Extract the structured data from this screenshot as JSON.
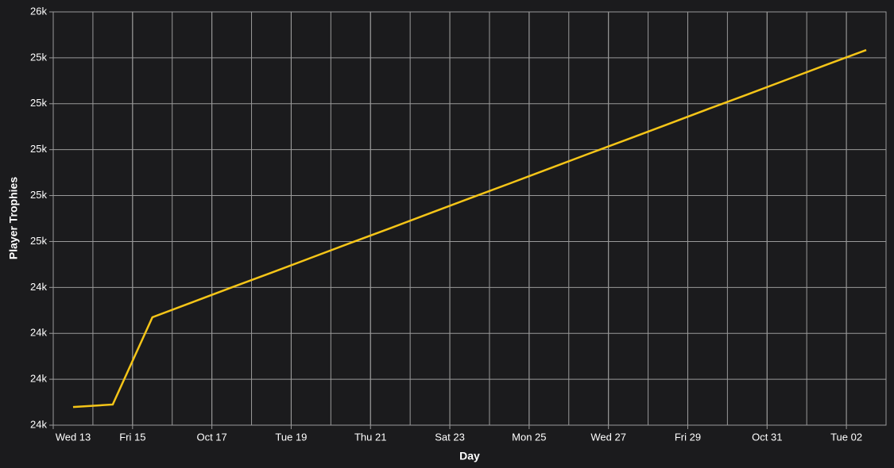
{
  "chart_data": {
    "type": "line",
    "x_label": "Day",
    "y_label": "Player Trophies",
    "x": [
      "Oct 13",
      "Oct 14",
      "Oct 15",
      "Oct 16",
      "Oct 17",
      "Oct 18",
      "Oct 19",
      "Oct 20",
      "Oct 21",
      "Oct 22",
      "Oct 23",
      "Oct 24",
      "Oct 25",
      "Oct 26",
      "Oct 27",
      "Oct 28",
      "Oct 29",
      "Oct 30",
      "Oct 31",
      "Nov 01",
      "Nov 02"
    ],
    "series": [
      {
        "name": "Player Trophies",
        "color": "#f5c518",
        "values": [
          23879,
          23890,
          24270,
          24335,
          24400,
          24464,
          24529,
          24594,
          24658,
          24723,
          24788,
          24852,
          24917,
          24982,
          25046,
          25111,
          25176,
          25240,
          25305,
          25370,
          25434
        ]
      }
    ],
    "xlim": [
      "Oct 13",
      "Nov 03"
    ],
    "xticks": [
      {
        "value": "Oct 13",
        "label": "Wed 13"
      },
      {
        "value": "Oct 15",
        "label": "Fri 15"
      },
      {
        "value": "Oct 17",
        "label": "Oct 17"
      },
      {
        "value": "Oct 19",
        "label": "Tue 19"
      },
      {
        "value": "Oct 21",
        "label": "Thu 21"
      },
      {
        "value": "Oct 23",
        "label": "Sat 23"
      },
      {
        "value": "Oct 25",
        "label": "Mon 25"
      },
      {
        "value": "Oct 27",
        "label": "Wed 27"
      },
      {
        "value": "Oct 29",
        "label": "Fri 29"
      },
      {
        "value": "Oct 31",
        "label": "Oct 31"
      },
      {
        "value": "Nov 02",
        "label": "Tue 02"
      }
    ],
    "ylim": [
      23800,
      25600
    ],
    "yticks": [
      {
        "value": 23800,
        "label": "24k"
      },
      {
        "value": 24000,
        "label": "24k"
      },
      {
        "value": 24200,
        "label": "24k"
      },
      {
        "value": 24400,
        "label": "24k"
      },
      {
        "value": 24600,
        "label": "25k"
      },
      {
        "value": 24800,
        "label": "25k"
      },
      {
        "value": 25000,
        "label": "25k"
      },
      {
        "value": 25200,
        "label": "25k"
      },
      {
        "value": 25400,
        "label": "25k"
      },
      {
        "value": 25600,
        "label": "26k"
      }
    ],
    "grid": true
  }
}
